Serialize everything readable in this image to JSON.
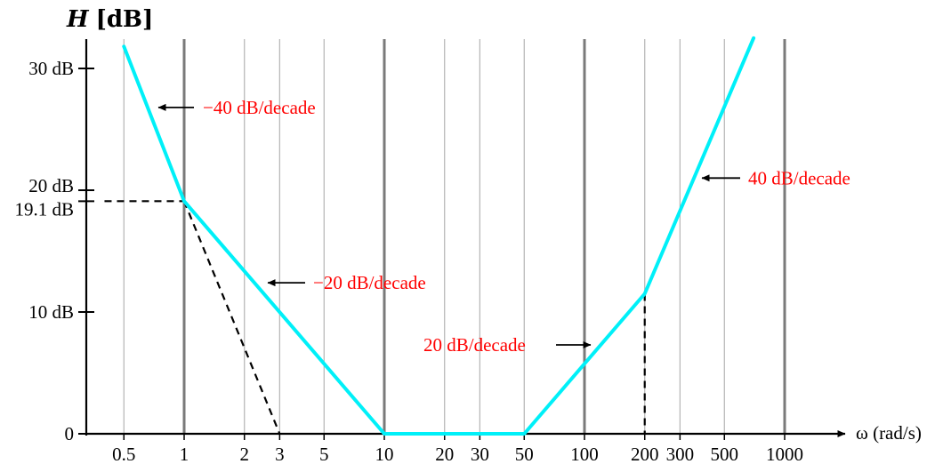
{
  "chart_data": {
    "type": "line",
    "title": "",
    "ylabel": "H [dB]",
    "ylabel_symbol": "H",
    "ylabel_unit": "[dB]",
    "xlabel": "ω (rad/s)",
    "xscale": "log",
    "xlim": [
      0.4,
      1100
    ],
    "ylim": [
      0,
      32
    ],
    "x_ticks": [
      {
        "value": 0.5,
        "label": "0.5"
      },
      {
        "value": 1,
        "label": "1"
      },
      {
        "value": 2,
        "label": "2"
      },
      {
        "value": 3,
        "label": "3"
      },
      {
        "value": 5,
        "label": "5"
      },
      {
        "value": 10,
        "label": "10"
      },
      {
        "value": 20,
        "label": "20"
      },
      {
        "value": 30,
        "label": "30"
      },
      {
        "value": 50,
        "label": "50"
      },
      {
        "value": 100,
        "label": "100"
      },
      {
        "value": 200,
        "label": "200"
      },
      {
        "value": 300,
        "label": "300"
      },
      {
        "value": 500,
        "label": "500"
      },
      {
        "value": 1000,
        "label": "1000"
      }
    ],
    "y_ticks": [
      {
        "value": 0,
        "label": "0"
      },
      {
        "value": 10,
        "label": "10 dB"
      },
      {
        "value": 19.1,
        "label": "19.1 dB"
      },
      {
        "value": 20,
        "label": "20 dB"
      },
      {
        "value": 30,
        "label": "30 dB"
      }
    ],
    "grid": {
      "major": [
        1,
        10,
        100,
        1000
      ],
      "minor": [
        0.5,
        2,
        3,
        5,
        20,
        30,
        50,
        200,
        300,
        500
      ]
    },
    "series": [
      {
        "color": "#00f0f8",
        "points": [
          {
            "x": 0.5,
            "y": 31.8
          },
          {
            "x": 1,
            "y": 19.1
          },
          {
            "x": 10,
            "y": 0
          },
          {
            "x": 50,
            "y": 0
          },
          {
            "x": 200,
            "y": 11.5
          },
          {
            "x": 700,
            "y": 32.5
          }
        ]
      }
    ],
    "guides": [
      {
        "points": [
          {
            "x": 0.4,
            "y": 19.1
          },
          {
            "x": 1,
            "y": 19.1
          }
        ]
      },
      {
        "points": [
          {
            "x": 1,
            "y": 19.1
          },
          {
            "x": 3,
            "y": 0
          }
        ]
      },
      {
        "points": [
          {
            "x": 200,
            "y": 11.5
          },
          {
            "x": 200,
            "y": 0
          }
        ]
      }
    ],
    "annotations": [
      {
        "text": "−40 dB/decade",
        "x": 0.7,
        "y": 26.8,
        "color": "#ff0000"
      },
      {
        "text": "40 dB/decade",
        "x": 400,
        "y": 21.0,
        "color": "#ff0000"
      },
      {
        "text": "−20 dB/decade",
        "x": 2.7,
        "y": 12.4,
        "color": "#ff0000"
      },
      {
        "text": "20 dB/decade",
        "x": 65,
        "y": 7.3,
        "color": "#ff0000"
      }
    ],
    "colors": {
      "line": "#00f0f8",
      "annotation": "#ff0000",
      "major_grid": "#7a7a7a",
      "minor_grid": "#b4b4b4",
      "axis": "#000000"
    }
  }
}
